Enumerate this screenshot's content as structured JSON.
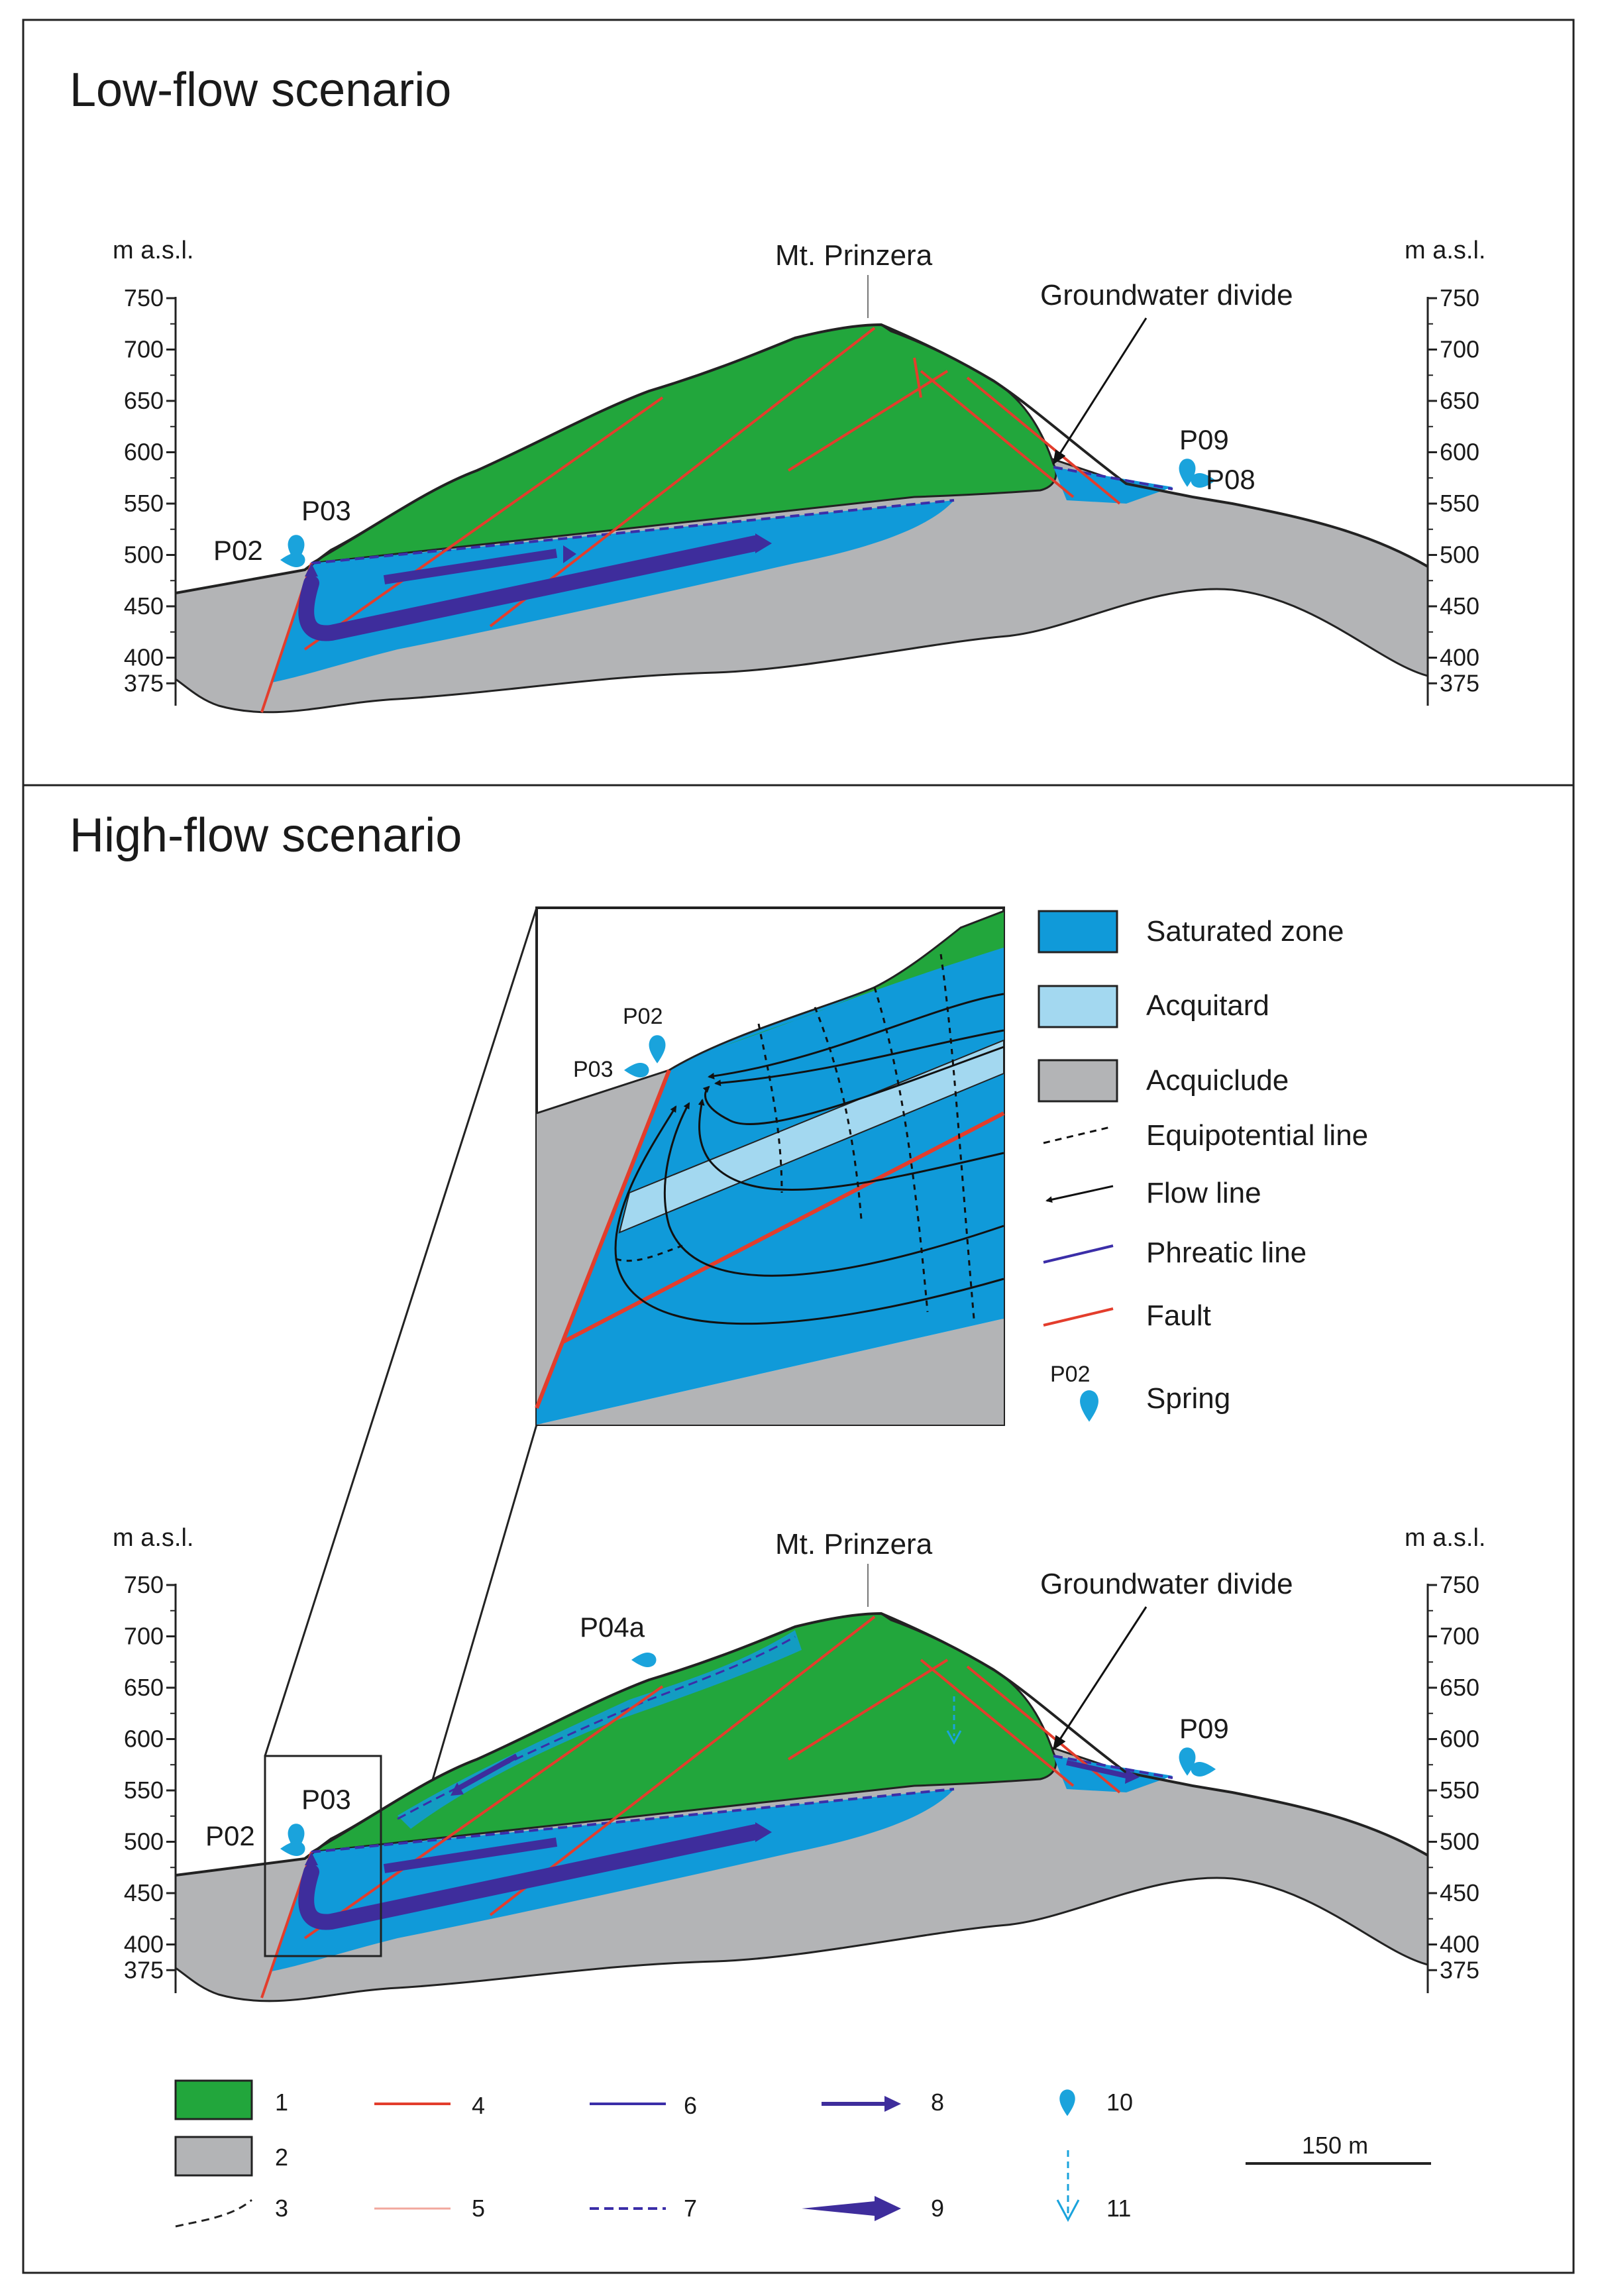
{
  "panels": {
    "low": {
      "title": "Low-flow scenario",
      "peak_label": "Mt. Prinzera",
      "divide_label": "Groundwater divide",
      "springs": [
        "P02",
        "P03",
        "P09",
        "P08"
      ]
    },
    "high": {
      "title": "High-flow scenario",
      "peak_label": "Mt. Prinzera",
      "divide_label": "Groundwater divide",
      "springs": [
        "P02",
        "P03",
        "P04a",
        "P09"
      ]
    }
  },
  "axis": {
    "label": "m a.s.l.",
    "ticks": [
      "750",
      "700",
      "650",
      "600",
      "550",
      "500",
      "450",
      "400",
      "375"
    ]
  },
  "inset": {
    "springs": [
      "P02",
      "P03"
    ]
  },
  "inset_legend": [
    {
      "label": "Saturated zone",
      "kind": "saturated"
    },
    {
      "label": "Acquitard",
      "kind": "acquitard"
    },
    {
      "label": "Acquiclude",
      "kind": "acquiclude"
    },
    {
      "label": "Equipotential line",
      "kind": "equipotential"
    },
    {
      "label": "Flow line",
      "kind": "flow"
    },
    {
      "label": "Phreatic line",
      "kind": "phreatic"
    },
    {
      "label": "Fault",
      "kind": "fault"
    },
    {
      "label": "Spring",
      "kind": "spring",
      "code": "P02"
    }
  ],
  "bottom_legend": [
    "1",
    "2",
    "3",
    "4",
    "5",
    "6",
    "7",
    "8",
    "9",
    "10",
    "11"
  ],
  "scale_bar": "150 m",
  "colors": {
    "green": "#22a63c",
    "blue": "#109ad9",
    "light_blue": "#a3d8f0",
    "gray": "#b3b4b6",
    "fault": "#e33d2c",
    "phreatic": "#3b2ea8",
    "arrow": "#3e2d9c",
    "spring": "#1aa3dc"
  }
}
